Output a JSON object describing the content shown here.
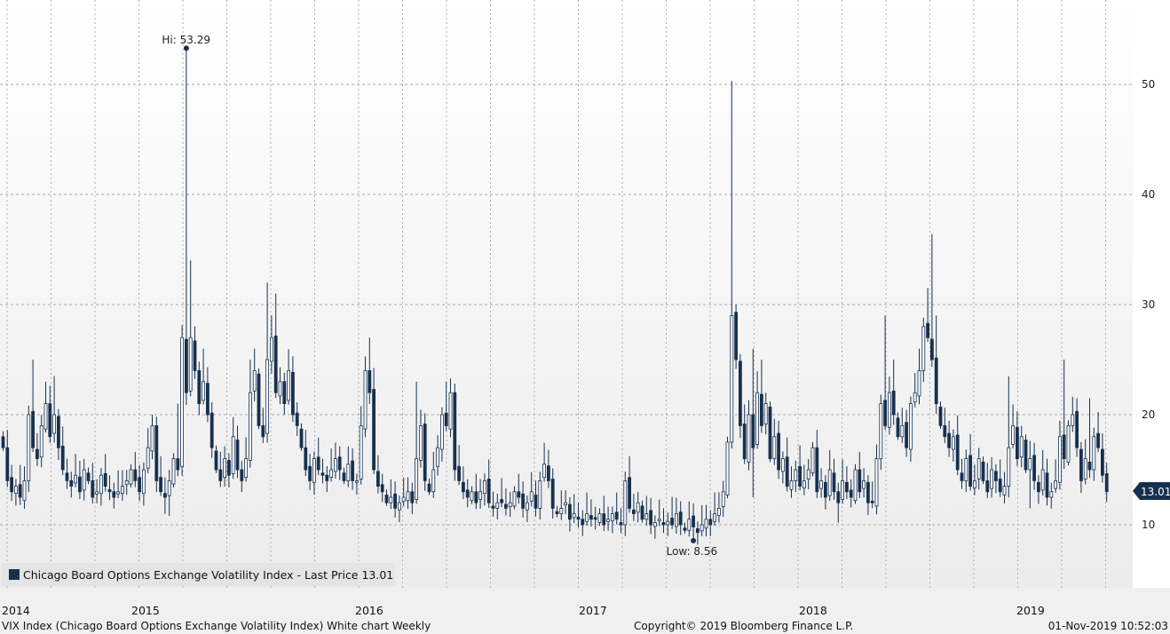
{
  "chart_data": {
    "type": "candlestick",
    "title": "VIX Index (Chicago Board Options Exchange Volatility Index) White chart",
    "frequency": "Weekly",
    "series_name": "Chicago Board Options Exchange Volatility Index - Last Price 13.01",
    "last_price": "13.01",
    "ylim": [
      4.3,
      57.7
    ],
    "yticks": [
      10,
      20,
      30,
      40,
      50
    ],
    "ytick_labels": [
      "10",
      "20",
      "30",
      "40",
      "50"
    ],
    "xtick_labels": [
      "2014",
      "2015",
      "2016",
      "2017",
      "2018",
      "2019"
    ],
    "grid": true,
    "legend": "bottom-left",
    "high_annotation": {
      "label": "Hi: 53.29",
      "value": 53.29,
      "week": 43
    },
    "low_annotation": {
      "label": "Low: 8.56",
      "value": 8.56,
      "week": 162
    },
    "weekly_close": [
      17,
      14,
      13,
      13.5,
      12.5,
      14,
      20,
      17,
      16,
      19,
      21,
      18,
      20,
      17,
      15,
      14,
      13.5,
      14.5,
      13,
      15,
      14,
      12.5,
      13,
      14.5,
      13.5,
      13,
      12.5,
      13,
      13.5,
      14,
      15,
      14,
      13,
      15,
      17,
      19,
      14,
      13,
      12.5,
      14,
      16,
      15,
      27,
      22,
      27,
      24,
      21,
      23,
      20,
      17,
      15,
      14,
      16,
      14.5,
      18,
      15,
      14,
      16,
      22,
      24,
      19,
      18,
      25,
      27,
      22,
      23,
      21,
      24,
      20,
      19,
      17,
      15,
      14,
      16,
      15,
      14.5,
      14,
      15,
      16,
      15,
      14,
      15.5,
      14,
      14,
      19,
      24,
      22,
      15,
      13.5,
      13,
      12,
      12.5,
      11.5,
      12,
      12.5,
      13,
      12,
      16,
      19,
      14,
      13,
      15,
      17,
      20,
      19,
      22,
      15,
      14,
      13,
      12.5,
      13,
      12,
      13,
      14,
      12,
      11.5,
      12,
      12,
      11.5,
      12,
      13,
      12.5,
      11.5,
      12,
      13,
      11.5,
      14,
      15.5,
      14,
      11.5,
      11,
      11.5,
      12,
      10.5,
      11,
      10.5,
      10,
      11,
      10.5,
      10.5,
      11,
      10,
      10.5,
      11,
      10.5,
      10,
      14,
      11.5,
      11,
      12,
      10.5,
      11,
      10,
      10.2,
      10.5,
      10,
      10.3,
      10,
      11,
      10,
      9.5,
      10.5,
      9.8,
      9.3,
      10,
      10.5,
      10,
      11,
      11.5,
      13,
      17.5,
      29,
      25,
      19,
      16,
      20,
      17,
      22,
      19,
      21,
      16,
      18,
      15,
      16,
      13.5,
      14,
      15,
      13.5,
      14,
      15,
      17,
      13,
      14,
      12.5,
      15,
      13,
      12,
      14,
      13,
      12.5,
      15,
      13,
      14,
      12,
      12,
      16,
      21,
      19,
      22,
      20,
      18,
      19,
      17,
      21,
      22,
      24,
      28,
      27,
      25,
      21,
      19,
      18,
      17,
      18,
      15,
      14,
      16,
      13.5,
      14,
      16,
      14,
      13,
      15,
      14,
      13,
      13.5,
      17,
      19,
      16,
      18,
      15,
      16,
      14,
      13,
      15,
      12.5,
      13,
      14,
      18,
      16,
      19,
      20,
      17,
      14,
      16,
      15,
      18,
      17,
      14.5,
      13.01
    ],
    "weekly_high_overrides": {
      "7": 25,
      "10": 23,
      "12": 23.5,
      "35": 20,
      "41": 21,
      "43": 53.29,
      "44": 34,
      "47": 26,
      "58": 25,
      "59": 26,
      "62": 32,
      "63": 29,
      "64": 31,
      "86": 27,
      "97": 23,
      "104": 23,
      "171": 50.3,
      "172": 30,
      "176": 26,
      "178": 25,
      "207": 29,
      "209": 25,
      "215": 26,
      "217": 31.5,
      "218": 36.4,
      "219": 29,
      "236": 23.5,
      "249": 25,
      "252": 21.5,
      "255": 21.5
    },
    "weekly_low_overrides": {
      "4": 11.8,
      "38": 11,
      "39": 10.8,
      "162": 8.56,
      "176": 12.5,
      "196": 10.2,
      "241": 11.5
    }
  },
  "legend": {
    "label": "Chicago Board Options Exchange Volatility Index - Last Price 13.01"
  },
  "footer": {
    "left": "VIX Index (Chicago Board Options Exchange Volatility Index) White chart  Weekly",
    "center": "Copyright© 2019 Bloomberg Finance L.P.",
    "right": "01-Nov-2019 10:52:03"
  },
  "colors": {
    "candle": "#17304f",
    "grid": "#a8a8a8",
    "tag": "#17304f"
  }
}
